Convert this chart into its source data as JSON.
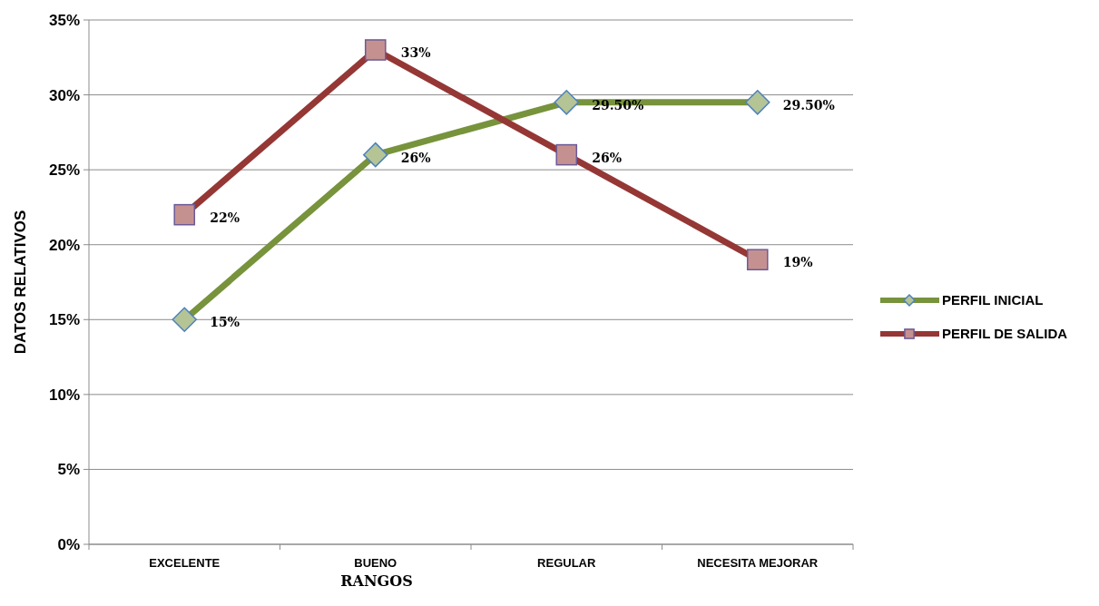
{
  "chart_data": {
    "type": "line",
    "xlabel": "RANGOS",
    "ylabel": "DATOS RELATIVOS",
    "categories": [
      "EXCELENTE",
      "BUENO",
      "REGULAR",
      "NECESITA MEJORAR"
    ],
    "series": [
      {
        "name": "PERFIL INICIAL",
        "color": "#77933c",
        "marker": "diamond",
        "values": [
          15,
          26,
          29.5,
          29.5
        ],
        "value_labels": [
          "15%",
          "26%",
          "29.50%",
          "29.50%"
        ]
      },
      {
        "name": "PERFIL DE SALIDA",
        "color": "#953735",
        "marker": "square",
        "values": [
          22,
          33,
          26,
          19
        ],
        "value_labels": [
          "22%",
          "33%",
          "26%",
          "19%"
        ]
      }
    ],
    "ylim": [
      0,
      35
    ],
    "yticks": [
      {
        "value": 0,
        "label": "0%"
      },
      {
        "value": 5,
        "label": "5%"
      },
      {
        "value": 10,
        "label": "10%"
      },
      {
        "value": 15,
        "label": "15%"
      },
      {
        "value": 20,
        "label": "20%"
      },
      {
        "value": 25,
        "label": "25%"
      },
      {
        "value": 30,
        "label": "30%"
      },
      {
        "value": 35,
        "label": "35%"
      }
    ],
    "grid": "y",
    "legend": "right",
    "line_style": "solid"
  }
}
